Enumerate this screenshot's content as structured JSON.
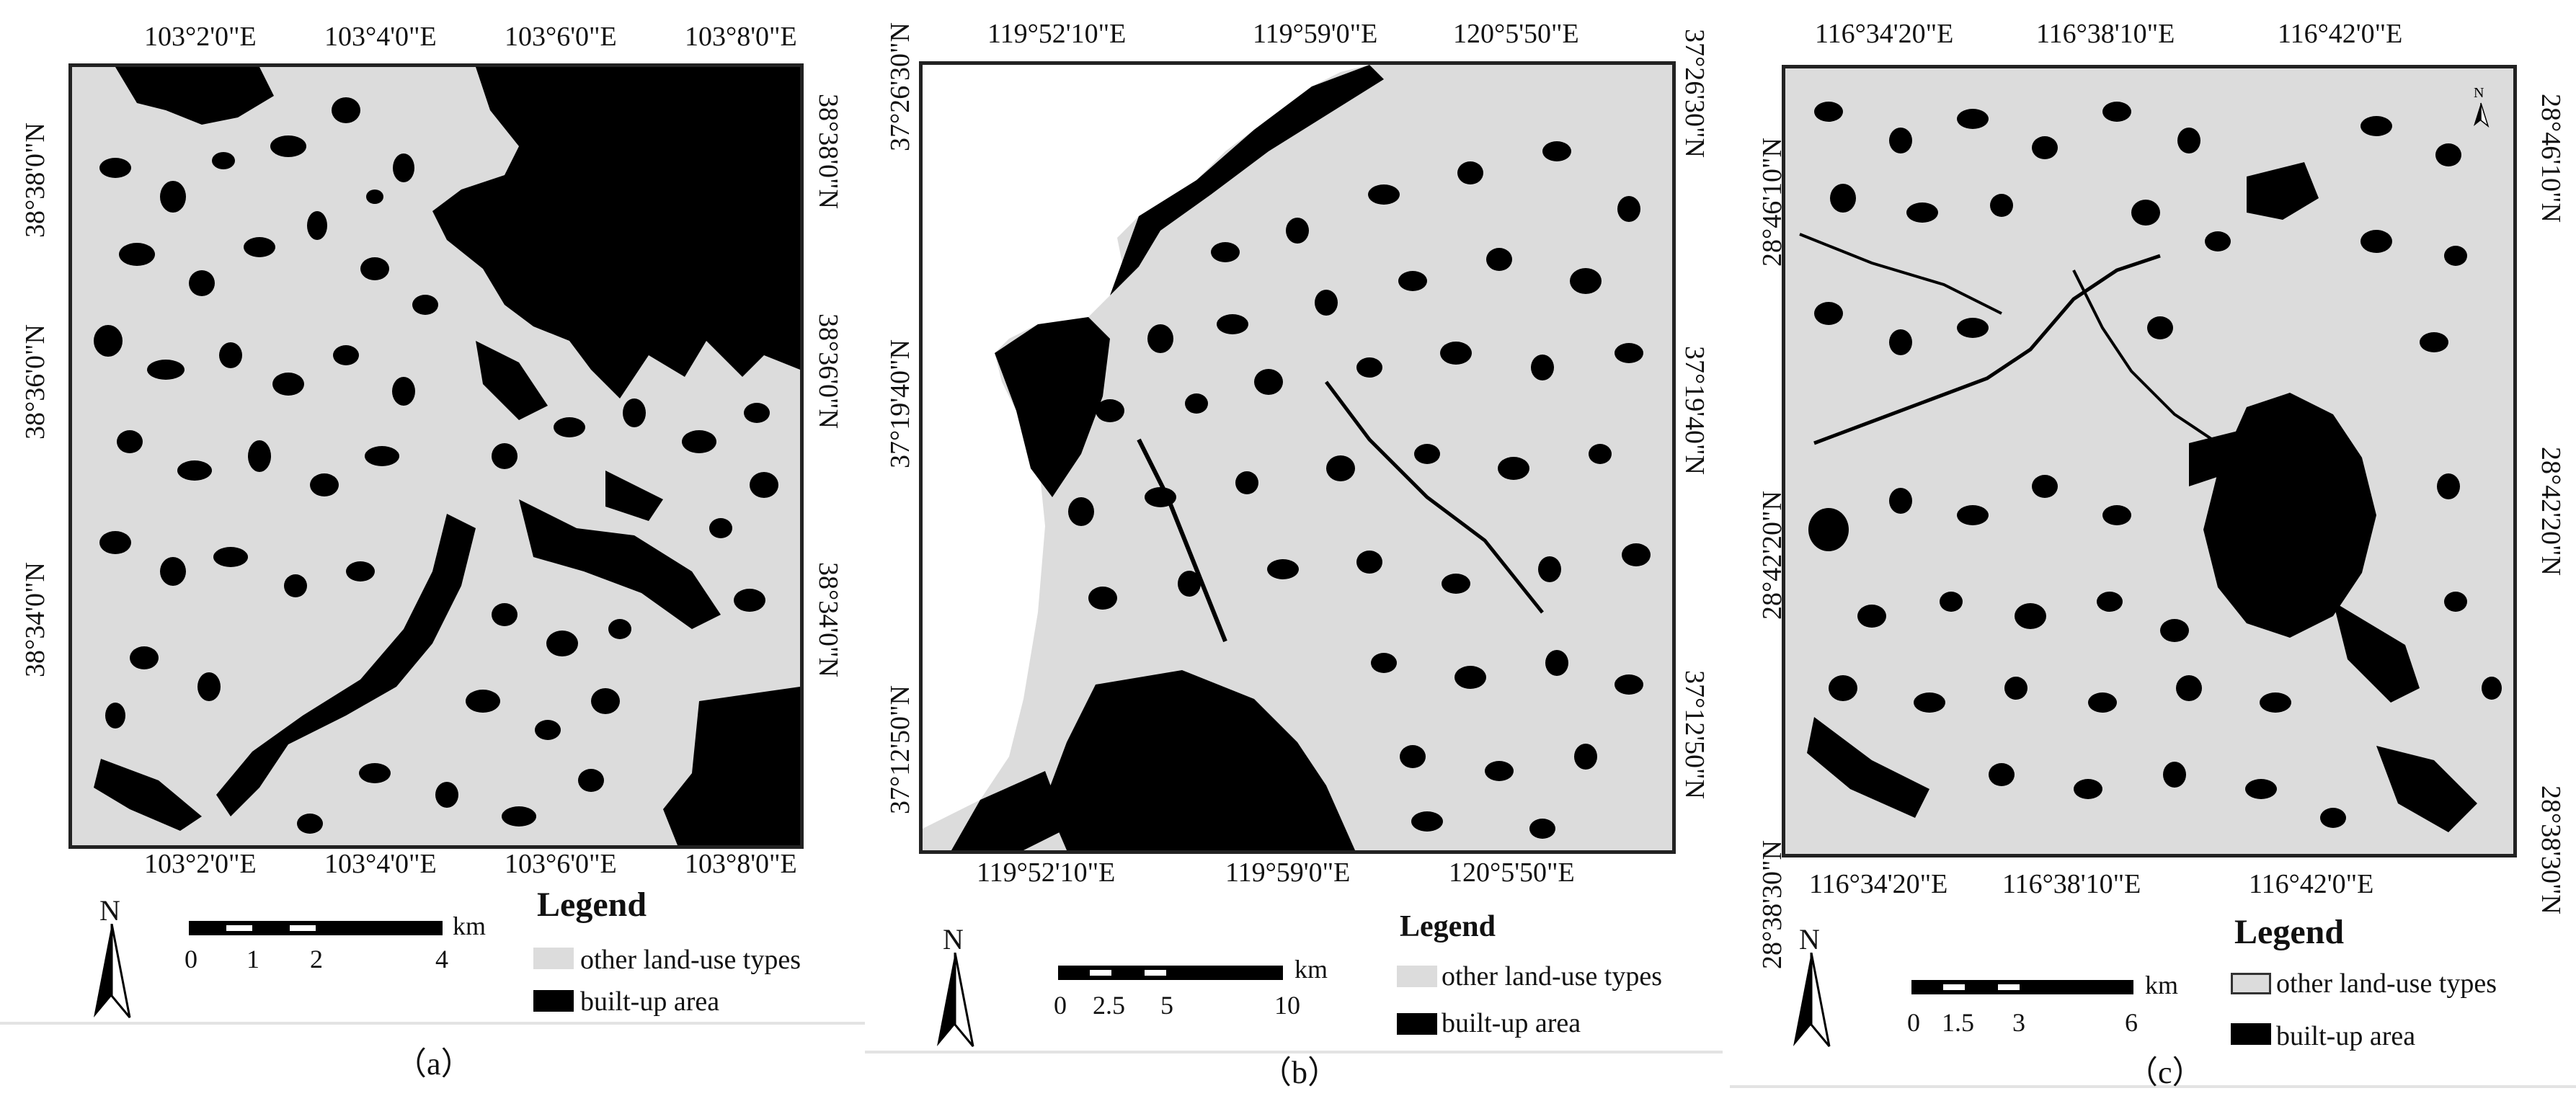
{
  "panels": [
    {
      "id": "a",
      "caption": "（a）",
      "lon_ticks": [
        "103°2'0\"E",
        "103°4'0\"E",
        "103°6'0\"E",
        "103°8'0\"E"
      ],
      "lat_ticks": [
        "38°38'0\"N",
        "38°36'0\"N",
        "38°34'0\"N"
      ],
      "scale": {
        "labels": [
          "0",
          "1",
          "2",
          "4"
        ],
        "unit": "km"
      }
    },
    {
      "id": "b",
      "caption": "（b）",
      "lon_ticks": [
        "119°52'10\"E",
        "119°59'0\"E",
        "120°5'50\"E"
      ],
      "lat_ticks": [
        "37°26'30\"N",
        "37°19'40\"N",
        "37°12'50\"N"
      ],
      "scale": {
        "labels": [
          "0",
          "2.5",
          "5",
          "10"
        ],
        "unit": "km"
      }
    },
    {
      "id": "c",
      "caption": "（c）",
      "lon_ticks": [
        "116°34'20\"E",
        "116°38'10\"E",
        "116°42'0\"E"
      ],
      "lat_ticks": [
        "28°46'10\"N",
        "28°42'20\"N",
        "28°38'30\"N"
      ],
      "scale": {
        "labels": [
          "0",
          "1.5",
          "3",
          "6"
        ],
        "unit": "km"
      }
    }
  ],
  "legend": {
    "title": "Legend",
    "items": [
      "other land-use types",
      "built-up area"
    ]
  },
  "north_label": "N",
  "colors": {
    "other": "#dcdcdc",
    "built": "#000000",
    "frame": "#222222"
  }
}
